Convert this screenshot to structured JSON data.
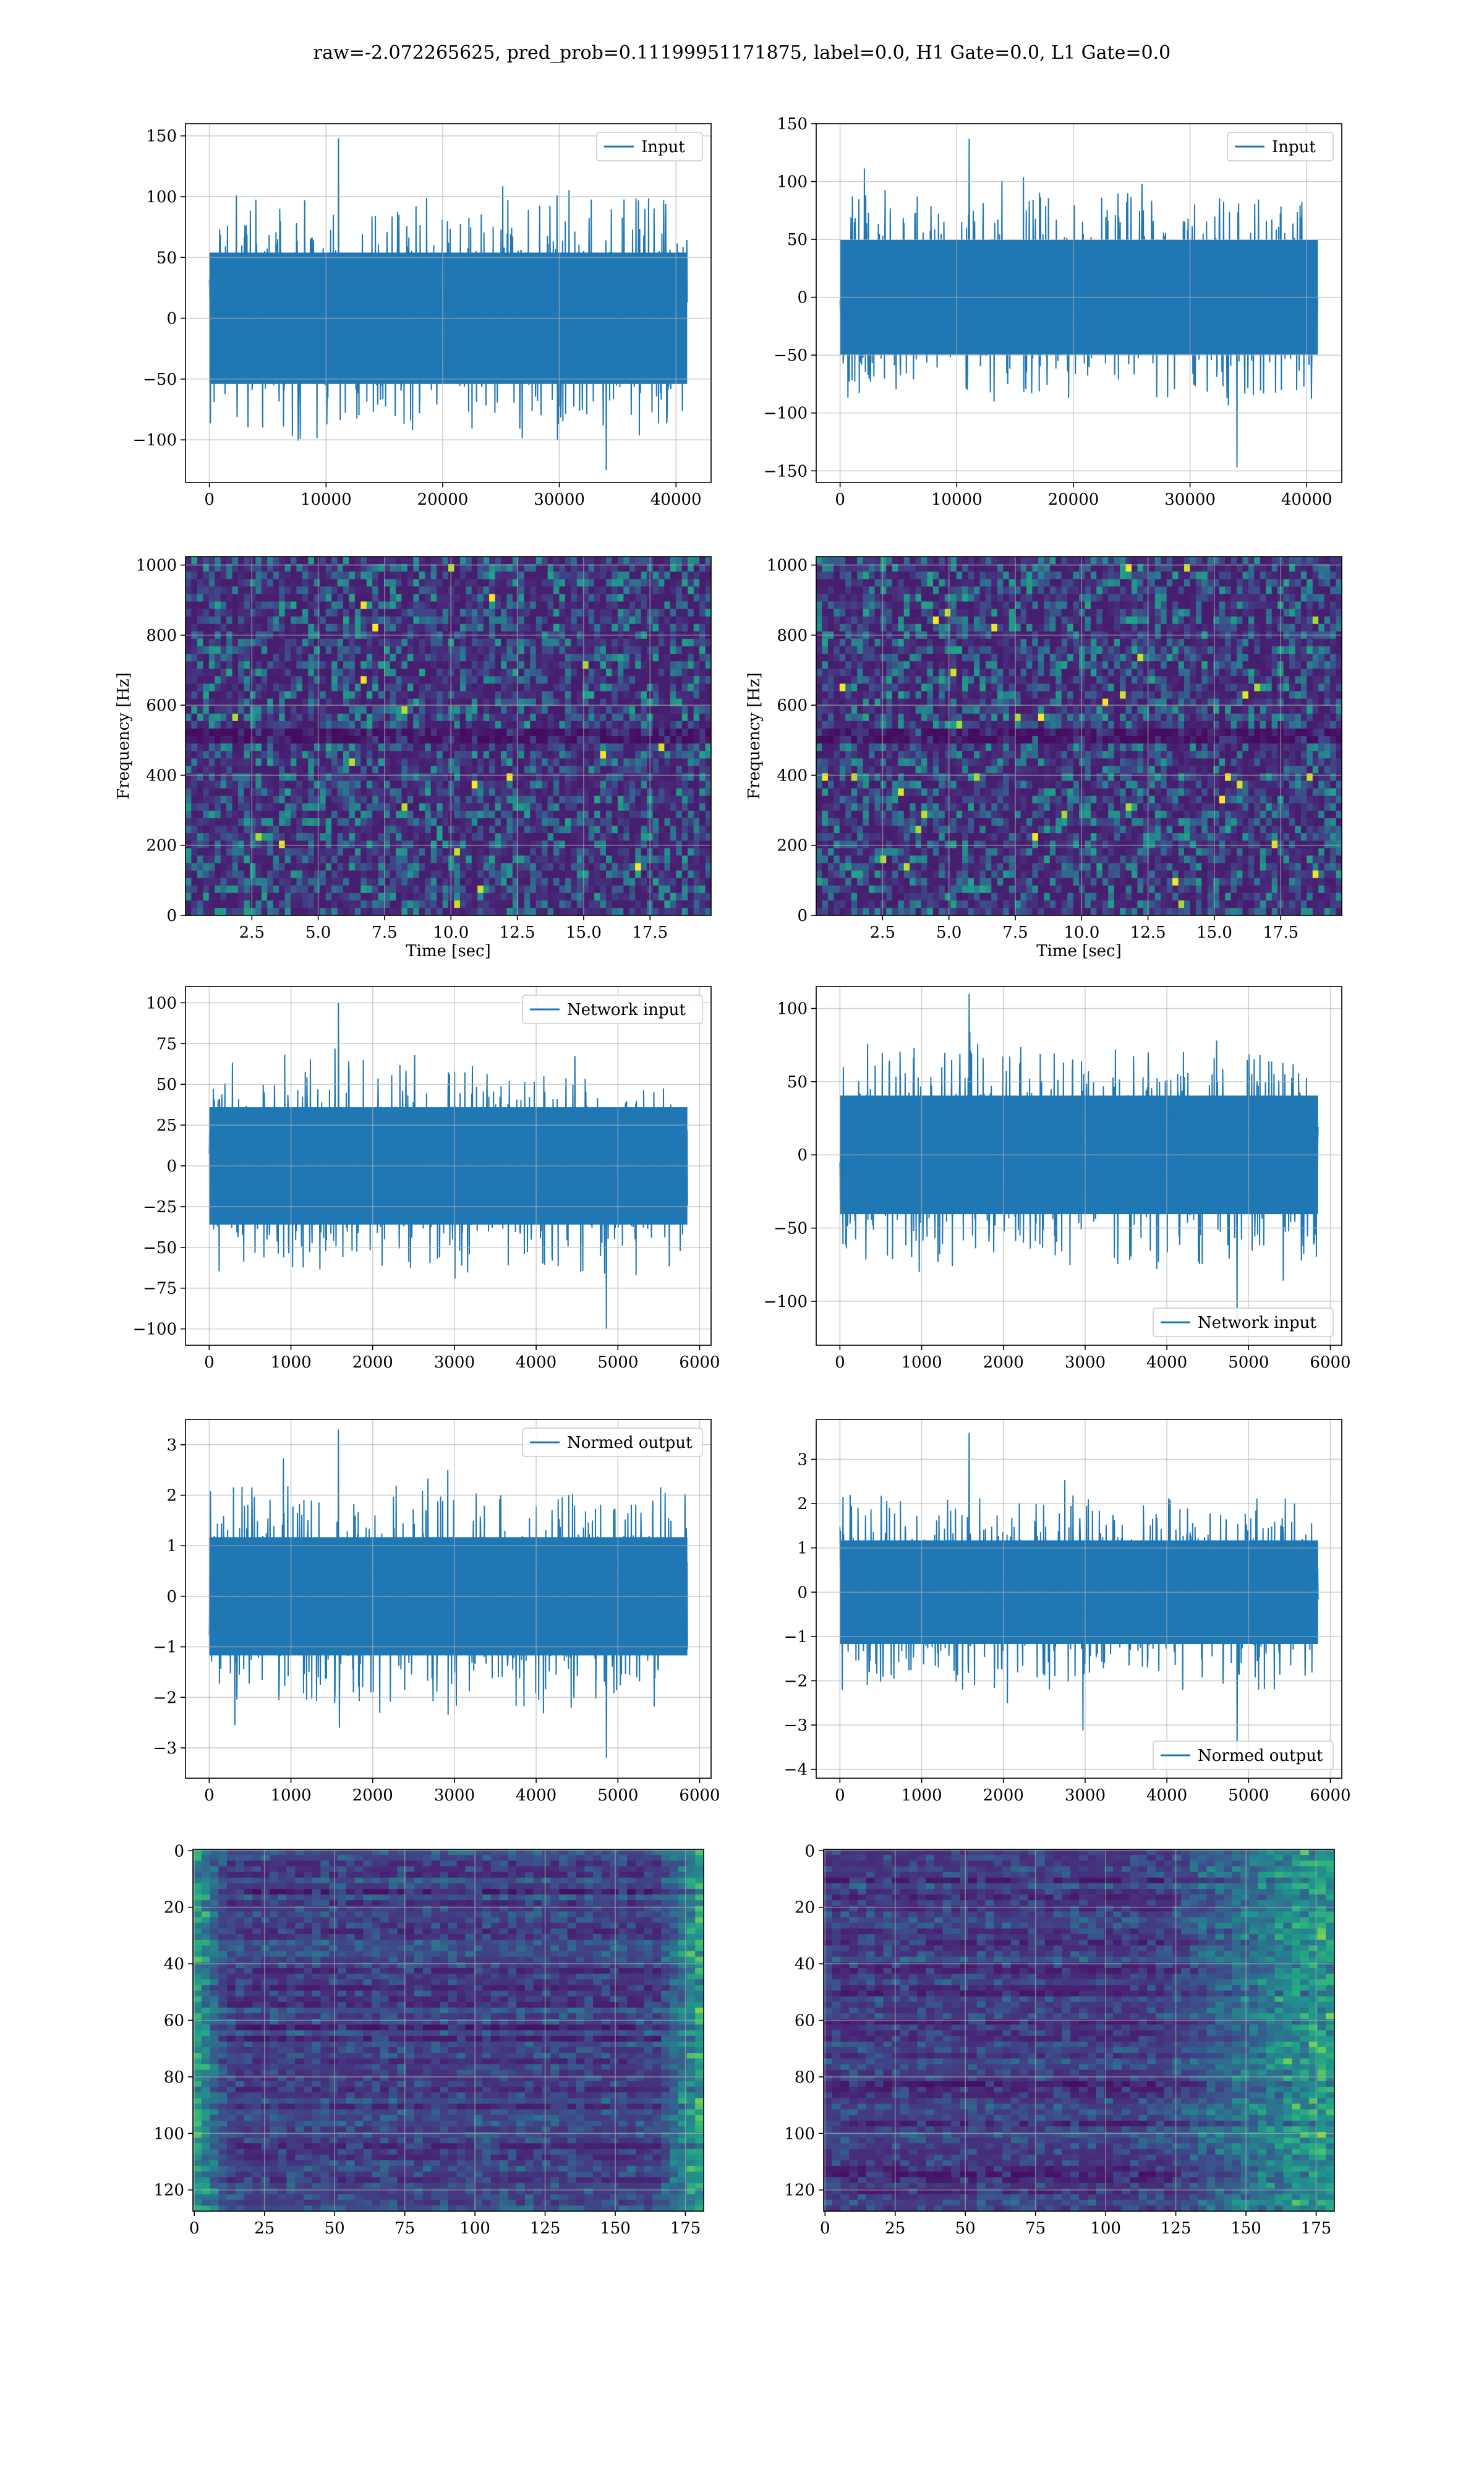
{
  "figure": {
    "suptitle": "raw=-2.072265625, pred_prob=0.11199951171875, label=0.0, H1 Gate=0.0, L1 Gate=0.0"
  },
  "chart_data": [
    {
      "id": "r1-left",
      "type": "line",
      "title": "",
      "xlabel": "",
      "ylabel": "",
      "legend": [
        "Input"
      ],
      "legend_loc": "upper right",
      "grid": true,
      "series": [
        {
          "name": "Input",
          "color": "#1f77b4",
          "x_range": [
            0,
            40960
          ],
          "typical_amplitude": 60,
          "min": -125,
          "max": 148
        }
      ],
      "xlim": [
        -2048,
        43008
      ],
      "ylim": [
        -135,
        160
      ],
      "xticks": [
        0,
        10000,
        20000,
        30000,
        40000
      ],
      "xticklabels": [
        "0",
        "10000",
        "20000",
        "30000",
        "40000"
      ],
      "yticks": [
        -100,
        -50,
        0,
        50,
        100,
        150
      ],
      "yticklabels": [
        "−100",
        "−50",
        "0",
        "50",
        "100",
        "150"
      ]
    },
    {
      "id": "r1-right",
      "type": "line",
      "title": "",
      "xlabel": "",
      "ylabel": "",
      "legend": [
        "Input"
      ],
      "legend_loc": "upper right",
      "grid": true,
      "series": [
        {
          "name": "Input",
          "color": "#1f77b4",
          "x_range": [
            0,
            40960
          ],
          "typical_amplitude": 55,
          "min": -147,
          "max": 137
        }
      ],
      "xlim": [
        -2048,
        43008
      ],
      "ylim": [
        -160,
        150
      ],
      "xticks": [
        0,
        10000,
        20000,
        30000,
        40000
      ],
      "xticklabels": [
        "0",
        "10000",
        "20000",
        "30000",
        "40000"
      ],
      "yticks": [
        -150,
        -100,
        -50,
        0,
        50,
        100,
        150
      ],
      "yticklabels": [
        "−150",
        "−100",
        "−50",
        "0",
        "50",
        "100",
        "150"
      ]
    },
    {
      "id": "r2-left",
      "type": "heatmap",
      "title": "",
      "xlabel": "Time [sec]",
      "ylabel": "Frequency [Hz]",
      "grid": true,
      "colormap": "viridis",
      "xlim": [
        0,
        19.8
      ],
      "ylim": [
        0,
        1024
      ],
      "xticks": [
        2.5,
        5,
        7.5,
        10,
        12.5,
        15,
        17.5
      ],
      "xticklabels": [
        "2.5",
        "5.0",
        "7.5",
        "10.0",
        "12.5",
        "15.0",
        "17.5"
      ],
      "yticks": [
        0,
        200,
        400,
        600,
        800,
        1000
      ],
      "yticklabels": [
        "0",
        "200",
        "400",
        "600",
        "800",
        "1000"
      ]
    },
    {
      "id": "r2-right",
      "type": "heatmap",
      "title": "",
      "xlabel": "Time [sec]",
      "ylabel": "Frequency [Hz]",
      "grid": true,
      "colormap": "viridis",
      "xlim": [
        0,
        19.8
      ],
      "ylim": [
        0,
        1024
      ],
      "xticks": [
        2.5,
        5,
        7.5,
        10,
        12.5,
        15,
        17.5
      ],
      "xticklabels": [
        "2.5",
        "5.0",
        "7.5",
        "10.0",
        "12.5",
        "15.0",
        "17.5"
      ],
      "yticks": [
        0,
        200,
        400,
        600,
        800,
        1000
      ],
      "yticklabels": [
        "0",
        "200",
        "400",
        "600",
        "800",
        "1000"
      ]
    },
    {
      "id": "r3-left",
      "type": "line",
      "title": "",
      "xlabel": "",
      "ylabel": "",
      "legend": [
        "Network input"
      ],
      "legend_loc": "upper right",
      "grid": true,
      "series": [
        {
          "name": "Network input",
          "color": "#1f77b4",
          "x_range": [
            0,
            5850
          ],
          "typical_amplitude": 40,
          "min": -100,
          "max": 100
        }
      ],
      "xlim": [
        -290,
        6140
      ],
      "ylim": [
        -110,
        110
      ],
      "xticks": [
        0,
        1000,
        2000,
        3000,
        4000,
        5000,
        6000
      ],
      "xticklabels": [
        "0",
        "1000",
        "2000",
        "3000",
        "4000",
        "5000",
        "6000"
      ],
      "yticks": [
        -100,
        -75,
        -50,
        -25,
        0,
        25,
        50,
        75,
        100
      ],
      "yticklabels": [
        "−100",
        "−75",
        "−50",
        "−25",
        "0",
        "25",
        "50",
        "75",
        "100"
      ]
    },
    {
      "id": "r3-right",
      "type": "line",
      "title": "",
      "xlabel": "",
      "ylabel": "",
      "legend": [
        "Network input"
      ],
      "legend_loc": "lower right",
      "grid": true,
      "series": [
        {
          "name": "Network input",
          "color": "#1f77b4",
          "x_range": [
            0,
            5850
          ],
          "typical_amplitude": 45,
          "min": -118,
          "max": 110
        }
      ],
      "xlim": [
        -290,
        6140
      ],
      "ylim": [
        -130,
        115
      ],
      "xticks": [
        0,
        1000,
        2000,
        3000,
        4000,
        5000,
        6000
      ],
      "xticklabels": [
        "0",
        "1000",
        "2000",
        "3000",
        "4000",
        "5000",
        "6000"
      ],
      "yticks": [
        -100,
        -50,
        0,
        50,
        100
      ],
      "yticklabels": [
        "−100",
        "−50",
        "0",
        "50",
        "100"
      ]
    },
    {
      "id": "r4-left",
      "type": "line",
      "title": "",
      "xlabel": "",
      "ylabel": "",
      "legend": [
        "Normed output"
      ],
      "legend_loc": "upper right",
      "grid": true,
      "series": [
        {
          "name": "Normed output",
          "color": "#1f77b4",
          "x_range": [
            0,
            5850
          ],
          "typical_amplitude": 1.3,
          "min": -3.2,
          "max": 3.3
        }
      ],
      "xlim": [
        -290,
        6140
      ],
      "ylim": [
        -3.6,
        3.5
      ],
      "xticks": [
        0,
        1000,
        2000,
        3000,
        4000,
        5000,
        6000
      ],
      "xticklabels": [
        "0",
        "1000",
        "2000",
        "3000",
        "4000",
        "5000",
        "6000"
      ],
      "yticks": [
        -3,
        -2,
        -1,
        0,
        1,
        2,
        3
      ],
      "yticklabels": [
        "−3",
        "−2",
        "−1",
        "0",
        "1",
        "2",
        "3"
      ]
    },
    {
      "id": "r4-right",
      "type": "line",
      "title": "",
      "xlabel": "",
      "ylabel": "",
      "legend": [
        "Normed output"
      ],
      "legend_loc": "lower right",
      "grid": true,
      "series": [
        {
          "name": "Normed output",
          "color": "#1f77b4",
          "x_range": [
            0,
            5850
          ],
          "typical_amplitude": 1.3,
          "min": -3.8,
          "max": 3.6
        }
      ],
      "xlim": [
        -290,
        6140
      ],
      "ylim": [
        -4.2,
        3.9
      ],
      "xticks": [
        0,
        1000,
        2000,
        3000,
        4000,
        5000,
        6000
      ],
      "xticklabels": [
        "0",
        "1000",
        "2000",
        "3000",
        "4000",
        "5000",
        "6000"
      ],
      "yticks": [
        -4,
        -3,
        -2,
        -1,
        0,
        1,
        2,
        3
      ],
      "yticklabels": [
        "−4",
        "−3",
        "−2",
        "−1",
        "0",
        "1",
        "2",
        "3"
      ]
    },
    {
      "id": "r5-left",
      "type": "heatmap",
      "title": "",
      "xlabel": "",
      "ylabel": "",
      "grid": true,
      "colormap": "viridis",
      "y_inverted": true,
      "xlim": [
        -0.5,
        181.5
      ],
      "ylim": [
        -0.5,
        127.5
      ],
      "xticks": [
        0,
        25,
        50,
        75,
        100,
        125,
        150,
        175
      ],
      "xticklabels": [
        "0",
        "25",
        "50",
        "75",
        "100",
        "125",
        "150",
        "175"
      ],
      "yticks": [
        0,
        20,
        40,
        60,
        80,
        100,
        120
      ],
      "yticklabels": [
        "0",
        "20",
        "40",
        "60",
        "80",
        "100",
        "120"
      ]
    },
    {
      "id": "r5-right",
      "type": "heatmap",
      "title": "",
      "xlabel": "",
      "ylabel": "",
      "grid": true,
      "colormap": "viridis",
      "y_inverted": true,
      "xlim": [
        -0.5,
        181.5
      ],
      "ylim": [
        -0.5,
        127.5
      ],
      "xticks": [
        0,
        25,
        50,
        75,
        100,
        125,
        150,
        175
      ],
      "xticklabels": [
        "0",
        "25",
        "50",
        "75",
        "100",
        "125",
        "150",
        "175"
      ],
      "yticks": [
        0,
        20,
        40,
        60,
        80,
        100,
        120
      ],
      "yticklabels": [
        "0",
        "20",
        "40",
        "60",
        "80",
        "100",
        "120"
      ]
    }
  ]
}
